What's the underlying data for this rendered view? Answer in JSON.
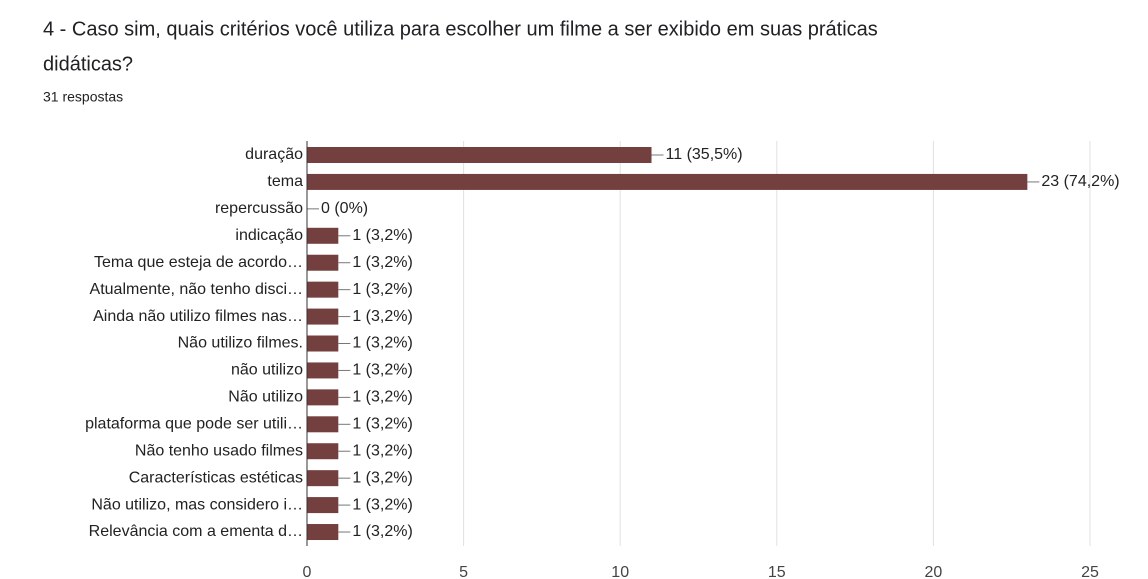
{
  "chart_data": {
    "type": "barh",
    "title": "4 - Caso sim, quais critérios você utiliza para escolher um filme a ser exibido em suas práticas didáticas?",
    "title_lines": [
      "4 - Caso sim, quais critérios você utiliza para escolher um filme a ser exibido em suas práticas",
      "didáticas?"
    ],
    "subtitle": "31 respostas",
    "categories": [
      "duração",
      "tema",
      "repercussão",
      "indicação",
      "Tema que esteja de acordo…",
      "Atualmente, não tenho disci…",
      "Ainda não utilizo filmes nas…",
      "Não utilizo filmes.",
      "não utilizo",
      "Não utilizo",
      "plataforma que pode ser utili…",
      "Não tenho usado filmes",
      "Características estéticas",
      "Não utilizo, mas considero i…",
      "Relevância com a ementa d…"
    ],
    "values": [
      11,
      23,
      0,
      1,
      1,
      1,
      1,
      1,
      1,
      1,
      1,
      1,
      1,
      1,
      1
    ],
    "value_labels": [
      "11 (35,5%)",
      "23 (74,2%)",
      "0 (0%)",
      "1 (3,2%)",
      "1 (3,2%)",
      "1 (3,2%)",
      "1 (3,2%)",
      "1 (3,2%)",
      "1 (3,2%)",
      "1 (3,2%)",
      "1 (3,2%)",
      "1 (3,2%)",
      "1 (3,2%)",
      "1 (3,2%)",
      "1 (3,2%)"
    ],
    "color": "#74403f",
    "xlim": [
      0,
      25
    ],
    "xticks": [
      0,
      5,
      10,
      15,
      20,
      25
    ],
    "grid": true
  }
}
